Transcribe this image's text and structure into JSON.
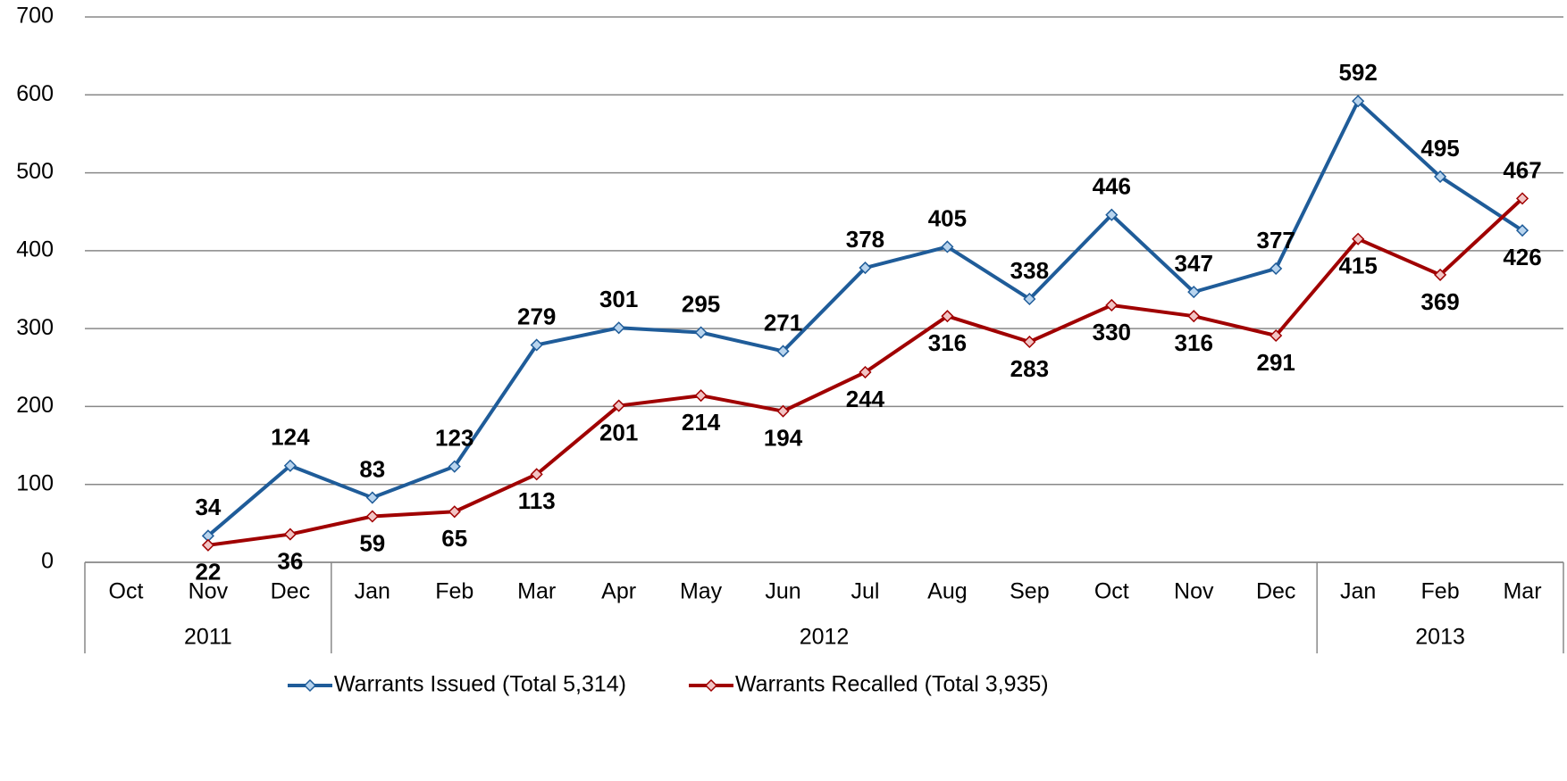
{
  "chart_data": {
    "type": "line",
    "groups": [
      {
        "label": "2011",
        "categories": [
          "Oct",
          "Nov",
          "Dec"
        ]
      },
      {
        "label": "2012",
        "categories": [
          "Jan",
          "Feb",
          "Mar",
          "Apr",
          "May",
          "Jun",
          "Jul",
          "Aug",
          "Sep",
          "Oct",
          "Nov",
          "Dec"
        ]
      },
      {
        "label": "2013",
        "categories": [
          "Jan",
          "Feb",
          "Mar"
        ]
      }
    ],
    "series": [
      {
        "name": "Warrants Issued (Total 5,314)",
        "color": "#1f5c99",
        "label_color": "#1f3f6e",
        "marker_fill": "#b8d4ee",
        "values": [
          null,
          34,
          124,
          83,
          123,
          279,
          301,
          295,
          271,
          378,
          405,
          338,
          446,
          347,
          377,
          592,
          495,
          426
        ]
      },
      {
        "name": "Warrants Recalled (Total 3,935)",
        "color": "#a00000",
        "label_color": "#a00000",
        "marker_fill": "#f2c4c4",
        "values": [
          null,
          22,
          36,
          59,
          65,
          113,
          201,
          214,
          194,
          244,
          316,
          283,
          330,
          316,
          291,
          415,
          369,
          467
        ]
      }
    ],
    "ylim": [
      0,
      700
    ],
    "yticks": [
      0,
      100,
      200,
      300,
      400,
      500,
      600,
      700
    ],
    "grid": true,
    "legend": "bottom"
  }
}
